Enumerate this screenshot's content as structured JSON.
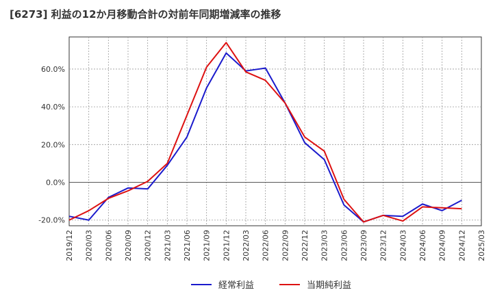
{
  "chart_data": {
    "type": "line",
    "title": "[6273]  利益の12か月移動合計の対前年同期増減率の推移",
    "xlabel": "",
    "ylabel": "",
    "ylim": [
      -23,
      77
    ],
    "yticks": [
      -20,
      0,
      20,
      40,
      60
    ],
    "ytick_labels": [
      "-20.0%",
      "0.0%",
      "20.0%",
      "40.0%",
      "60.0%"
    ],
    "x_ticks": [
      "2019/12",
      "2020/03",
      "2020/06",
      "2020/09",
      "2020/12",
      "2021/03",
      "2021/06",
      "2021/09",
      "2021/12",
      "2022/03",
      "2022/06",
      "2022/09",
      "2022/12",
      "2023/03",
      "2023/06",
      "2023/09",
      "2023/12",
      "2024/03",
      "2024/06",
      "2024/09",
      "2024/12",
      "2025/03"
    ],
    "grid": true,
    "legend_position": "bottom",
    "series": [
      {
        "name": "経常利益",
        "color": "#1a1acc",
        "values": [
          -18,
          -20,
          -8,
          -3,
          -3.5,
          9,
          24,
          50,
          68.5,
          59,
          60.5,
          42,
          21,
          12,
          -12,
          -21,
          -17.5,
          -18,
          -11.5,
          -15,
          -9.5
        ]
      },
      {
        "name": "当期純利益",
        "color": "#dd1111",
        "values": [
          -20,
          -15,
          -8.5,
          -4.5,
          0.5,
          10,
          35.5,
          61,
          74,
          58.5,
          54,
          42,
          24,
          16.5,
          -9,
          -21,
          -17.5,
          -20.5,
          -13,
          -13.5,
          -14
        ]
      }
    ]
  }
}
